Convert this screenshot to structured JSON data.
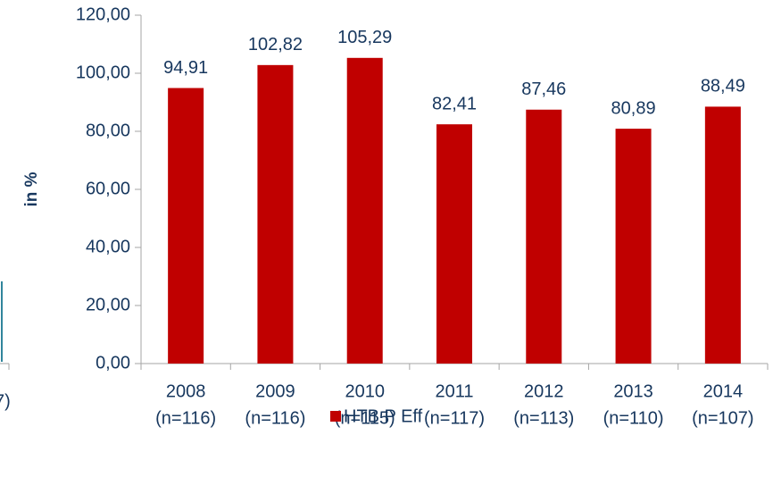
{
  "chart_data": {
    "type": "bar",
    "y_axis_label": "in %",
    "categories": [
      [
        "2008",
        "(n=116)"
      ],
      [
        "2009",
        "(n=116)"
      ],
      [
        "2010",
        "(n=115)"
      ],
      [
        "2011",
        "(n=117)"
      ],
      [
        "2012",
        "(n=113)"
      ],
      [
        "2013",
        "(n=110)"
      ],
      [
        "2014",
        "(n=107)"
      ]
    ],
    "series": [
      {
        "name": "HTB P Eff",
        "color": "#c00000",
        "values": [
          94.91,
          102.82,
          105.29,
          82.41,
          87.46,
          80.89,
          88.49
        ],
        "value_labels": [
          "94,91",
          "102,82",
          "105,29",
          "82,41",
          "87,46",
          "80,89",
          "88,49"
        ]
      }
    ],
    "ylim": [
      0,
      120
    ],
    "yticks": [
      {
        "value": 0,
        "label": "0,00"
      },
      {
        "value": 20,
        "label": "20,00"
      },
      {
        "value": 40,
        "label": "40,00"
      },
      {
        "value": 60,
        "label": "60,00"
      },
      {
        "value": 80,
        "label": "80,00"
      },
      {
        "value": 100,
        "label": "100,00"
      },
      {
        "value": 120,
        "label": "120,00"
      }
    ],
    "legend": "bottom",
    "left_fragment": "7)"
  }
}
